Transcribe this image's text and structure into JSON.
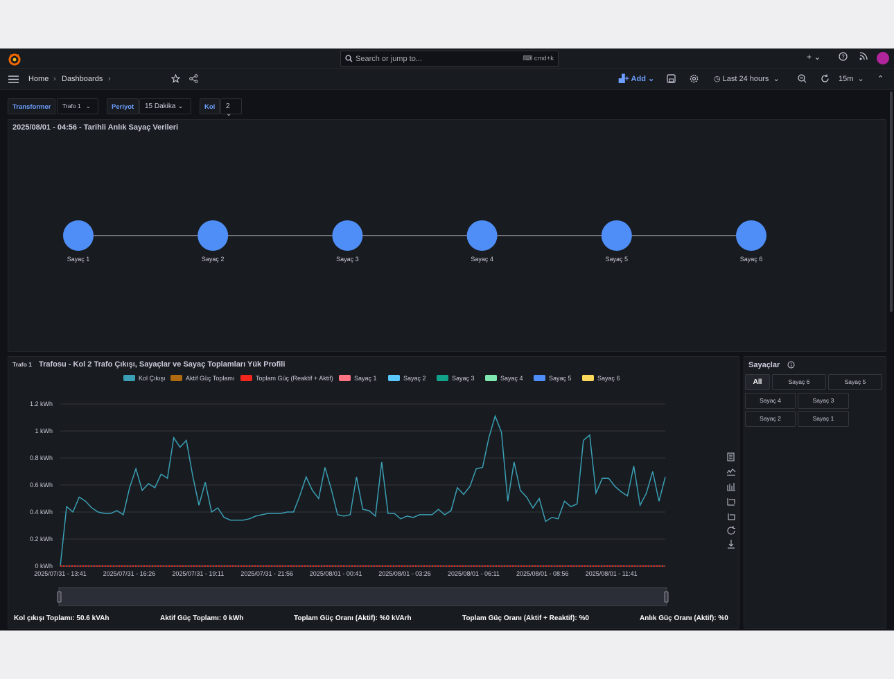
{
  "topbar": {
    "search_placeholder": "Search or jump to...",
    "search_shortcut": "cmd+k"
  },
  "nav": {
    "breadcrumbs": [
      "Home",
      "Dashboards"
    ],
    "add_label": "Add",
    "time_range": "Last 24 hours",
    "refresh_interval": "15m"
  },
  "variables": [
    {
      "label": "Transformer",
      "value": "Trafo 1"
    },
    {
      "label": "Periyot",
      "value": "15 Dakika"
    },
    {
      "label": "Kol",
      "value": "2"
    }
  ],
  "meters_panel": {
    "title": "2025/08/01 - 04:56 - Tarihli Anlık Sayaç Verileri",
    "nodes": [
      "Sayaç 1",
      "Sayaç 2",
      "Sayaç 3",
      "Sayaç 4",
      "Sayaç 5",
      "Sayaç 6"
    ],
    "node_color": "#4f8ef7"
  },
  "load_panel": {
    "title_prefix": "Trafo 1",
    "title": "Trafosu - Kol 2 Trafo Çıkışı, Sayaçlar ve Sayaç Toplamları Yük Profili",
    "legend": [
      {
        "name": "Kol Çıkışı",
        "color": "#3a9fb5"
      },
      {
        "name": "Aktif Güç Toplamı",
        "color": "#b06a0f"
      },
      {
        "name": "Toplam Güç (Reaktif + Aktif)",
        "color": "#f2261d"
      },
      {
        "name": "Sayaç 1",
        "color": "#ff7383"
      },
      {
        "name": "Sayaç 2",
        "color": "#5ac8fa"
      },
      {
        "name": "Sayaç 3",
        "color": "#12a38b"
      },
      {
        "name": "Sayaç 4",
        "color": "#7ee8b0"
      },
      {
        "name": "Sayaç 5",
        "color": "#4f8ef7"
      },
      {
        "name": "Sayaç 6",
        "color": "#fad85a"
      }
    ],
    "footer": [
      "Kol çıkışı Toplamı: 50.6 kVAh",
      "Aktif Güç Toplamı: 0 kWh",
      "Toplam Güç Oranı (Aktif): %0 kVArh",
      "Toplam Güç Oranı (Aktif + Reaktif): %0",
      "Anlık Güç Oranı (Aktif): %0"
    ]
  },
  "chart_data": {
    "type": "line",
    "ylim": [
      0,
      1.2
    ],
    "y_ticks": [
      "0 kWh",
      "0.2 kWh",
      "0.4 kWh",
      "0.6 kWh",
      "0.8 kWh",
      "1 kWh",
      "1.2 kWh"
    ],
    "x_ticks": [
      "2025/07/31 - 13:41",
      "2025/07/31 - 16:26",
      "2025/07/31 - 19:11",
      "2025/07/31 - 21:56",
      "2025/08/01 - 00:41",
      "2025/08/01 - 03:26",
      "2025/08/01 - 06:11",
      "2025/08/01 - 08:56",
      "2025/08/01 - 11:41"
    ],
    "series": [
      {
        "name": "Kol Çıkışı",
        "color": "#3a9fb5",
        "values": [
          0,
          0.44,
          0.4,
          0.51,
          0.48,
          0.43,
          0.4,
          0.39,
          0.39,
          0.41,
          0.38,
          0.58,
          0.72,
          0.56,
          0.61,
          0.58,
          0.68,
          0.65,
          0.95,
          0.88,
          0.93,
          0.67,
          0.45,
          0.62,
          0.4,
          0.43,
          0.36,
          0.34,
          0.34,
          0.34,
          0.35,
          0.37,
          0.38,
          0.39,
          0.39,
          0.39,
          0.4,
          0.4,
          0.52,
          0.66,
          0.56,
          0.5,
          0.73,
          0.57,
          0.38,
          0.37,
          0.38,
          0.66,
          0.42,
          0.41,
          0.37,
          0.77,
          0.39,
          0.39,
          0.35,
          0.37,
          0.36,
          0.38,
          0.38,
          0.38,
          0.42,
          0.38,
          0.41,
          0.58,
          0.53,
          0.59,
          0.72,
          0.73,
          0.95,
          1.11,
          0.99,
          0.48,
          0.77,
          0.56,
          0.51,
          0.43,
          0.5,
          0.33,
          0.36,
          0.35,
          0.48,
          0.44,
          0.46,
          0.93,
          0.97,
          0.54,
          0.65,
          0.65,
          0.59,
          0.55,
          0.52,
          0.74,
          0.45,
          0.54,
          0.7,
          0.48,
          0.66
        ]
      },
      {
        "name": "Toplam Güç (Reaktif + Aktif)",
        "color": "#f2261d",
        "values": "flat 0"
      }
    ]
  },
  "sayaclar_panel": {
    "title": "Sayaçlar",
    "buttons": [
      "All",
      "Sayaç 6",
      "Sayaç 5",
      "Sayaç 4",
      "Sayaç 3",
      "Sayaç 2",
      "Sayaç 1"
    ]
  }
}
